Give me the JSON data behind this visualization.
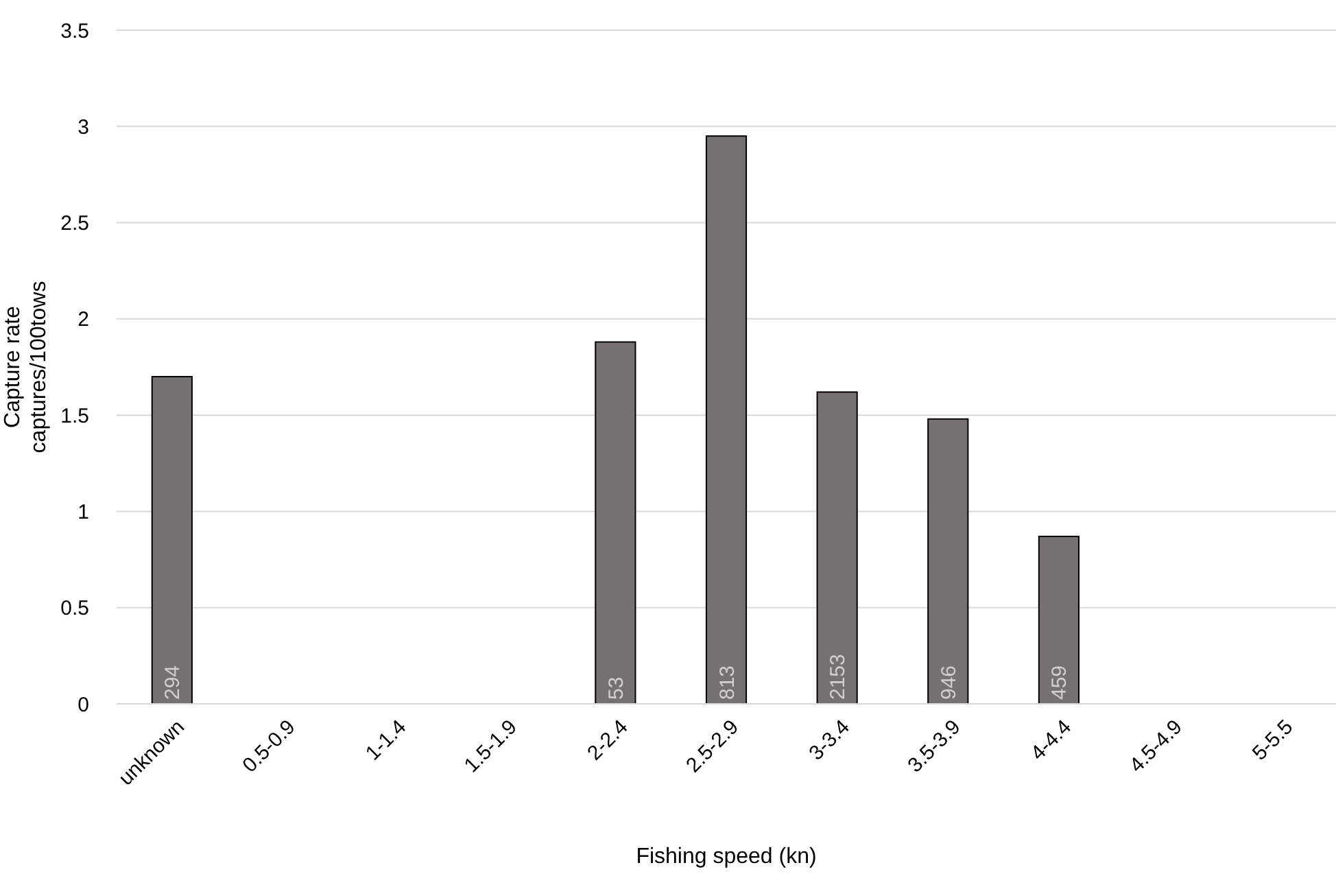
{
  "chart_data": {
    "type": "bar",
    "xlabel": "Fishing speed (kn)",
    "ylabel": "Capture rate\ncaptures/100tows",
    "categories": [
      "unknown",
      "0.5-0.9",
      "1-1.4",
      "1.5-1.9",
      "2-2.4",
      "2.5-2.9",
      "3-3.4",
      "3.5-3.9",
      "4-4.4",
      "4.5-4.9",
      "5-5.5"
    ],
    "values": [
      1.7,
      null,
      null,
      null,
      1.88,
      2.95,
      1.62,
      1.48,
      0.87,
      null,
      null
    ],
    "annotations": [
      {
        "text": "294",
        "x": "unknown",
        "y": 0
      },
      {
        "text": "53",
        "x": "2-2.4",
        "y": 0
      },
      {
        "text": "813",
        "x": "2.5-2.9",
        "y": 0
      },
      {
        "text": "2153",
        "x": "3-3.4",
        "y": 0
      },
      {
        "text": "946",
        "x": "3.5-3.9",
        "y": 0
      },
      {
        "text": "459",
        "x": "4-4.4",
        "y": 0
      }
    ],
    "color": "#767171",
    "ylim": [
      0,
      3.5
    ],
    "yticks": [
      0,
      0.5,
      1,
      1.5,
      2,
      2.5,
      3,
      3.5
    ],
    "grid": "y"
  }
}
